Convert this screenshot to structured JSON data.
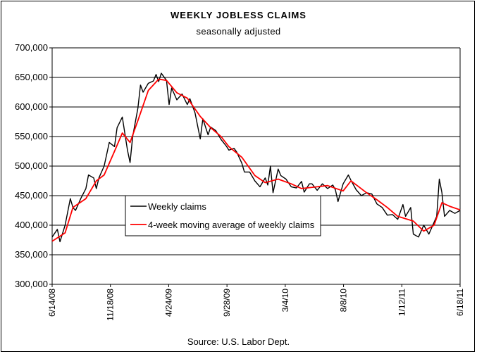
{
  "chart_data": {
    "type": "line",
    "title": "WEEKLY JOBLESS CLAIMS",
    "subtitle": "seasonally adjusted",
    "source": "Source: U.S. Labor Dept.",
    "xlabel": "",
    "ylabel": "",
    "ylim": [
      300000,
      700000
    ],
    "ytick_step": 50000,
    "y_tick_labels": [
      "300,000",
      "350,000",
      "400,000",
      "450,000",
      "500,000",
      "550,000",
      "600,000",
      "650,000",
      "700,000"
    ],
    "x_range": [
      "6/14/08",
      "6/18/11"
    ],
    "x_tick_labels": [
      "6/14/08",
      "11/18/08",
      "4/24/09",
      "9/28/09",
      "3/4/10",
      "8/8/10",
      "1/12/11",
      "6/18/11"
    ],
    "grid": "horizontal",
    "legend_position": "center-left",
    "series": [
      {
        "name": "Weekly claims",
        "color": "#000000",
        "points": [
          [
            "6/14/08",
            380000
          ],
          [
            "6/28/08",
            393000
          ],
          [
            "7/5/08",
            372000
          ],
          [
            "7/19/08",
            400000
          ],
          [
            "8/2/08",
            445000
          ],
          [
            "8/9/08",
            430000
          ],
          [
            "8/16/08",
            425000
          ],
          [
            "8/30/08",
            445000
          ],
          [
            "9/13/08",
            462000
          ],
          [
            "9/20/08",
            485000
          ],
          [
            "10/4/08",
            480000
          ],
          [
            "10/11/08",
            462000
          ],
          [
            "10/18/08",
            480000
          ],
          [
            "11/1/08",
            500000
          ],
          [
            "11/15/08",
            540000
          ],
          [
            "11/29/08",
            533000
          ],
          [
            "12/6/08",
            565000
          ],
          [
            "12/20/08",
            583000
          ],
          [
            "1/3/09",
            527000
          ],
          [
            "1/10/09",
            506000
          ],
          [
            "1/17/09",
            550000
          ],
          [
            "1/31/09",
            598000
          ],
          [
            "2/7/09",
            637000
          ],
          [
            "2/14/09",
            625000
          ],
          [
            "2/28/09",
            640000
          ],
          [
            "3/14/09",
            644000
          ],
          [
            "3/21/09",
            655000
          ],
          [
            "3/28/09",
            643000
          ],
          [
            "4/4/09",
            657000
          ],
          [
            "4/18/09",
            645000
          ],
          [
            "4/25/09",
            604000
          ],
          [
            "5/2/09",
            632000
          ],
          [
            "5/16/09",
            612000
          ],
          [
            "5/30/09",
            622000
          ],
          [
            "6/13/09",
            604000
          ],
          [
            "6/20/09",
            614000
          ],
          [
            "7/4/09",
            590000
          ],
          [
            "7/18/09",
            546000
          ],
          [
            "7/25/09",
            580000
          ],
          [
            "8/8/09",
            553000
          ],
          [
            "8/15/09",
            566000
          ],
          [
            "8/29/09",
            560000
          ],
          [
            "9/12/09",
            545000
          ],
          [
            "9/26/09",
            534000
          ],
          [
            "10/3/09",
            527000
          ],
          [
            "10/17/09",
            530000
          ],
          [
            "10/24/09",
            524000
          ],
          [
            "11/7/09",
            505000
          ],
          [
            "11/14/09",
            490000
          ],
          [
            "11/28/09",
            490000
          ],
          [
            "12/12/09",
            475000
          ],
          [
            "12/26/09",
            465000
          ],
          [
            "1/9/10",
            480000
          ],
          [
            "1/16/10",
            468000
          ],
          [
            "1/23/10",
            500000
          ],
          [
            "1/30/10",
            455000
          ],
          [
            "2/13/10",
            495000
          ],
          [
            "2/20/10",
            484000
          ],
          [
            "3/6/10",
            478000
          ],
          [
            "3/20/10",
            465000
          ],
          [
            "4/3/10",
            463000
          ],
          [
            "4/17/10",
            474000
          ],
          [
            "4/24/10",
            456000
          ],
          [
            "5/8/10",
            470000
          ],
          [
            "5/15/10",
            470000
          ],
          [
            "5/29/10",
            459000
          ],
          [
            "6/12/10",
            470000
          ],
          [
            "6/26/10",
            462000
          ],
          [
            "7/10/10",
            468000
          ],
          [
            "7/17/10",
            460000
          ],
          [
            "7/24/10",
            440000
          ],
          [
            "8/7/10",
            470000
          ],
          [
            "8/21/10",
            485000
          ],
          [
            "8/28/10",
            476000
          ],
          [
            "9/11/10",
            460000
          ],
          [
            "9/25/10",
            450000
          ],
          [
            "10/9/10",
            455000
          ],
          [
            "10/23/10",
            453000
          ],
          [
            "11/6/10",
            436000
          ],
          [
            "11/20/10",
            430000
          ],
          [
            "12/4/10",
            417000
          ],
          [
            "12/18/10",
            418000
          ],
          [
            "1/1/11",
            410000
          ],
          [
            "1/15/11",
            435000
          ],
          [
            "1/22/11",
            415000
          ],
          [
            "2/5/11",
            430000
          ],
          [
            "2/12/11",
            385000
          ],
          [
            "2/26/11",
            380000
          ],
          [
            "3/12/11",
            400000
          ],
          [
            "3/26/11",
            385000
          ],
          [
            "4/9/11",
            405000
          ],
          [
            "4/16/11",
            415000
          ],
          [
            "4/23/11",
            478000
          ],
          [
            "4/30/11",
            455000
          ],
          [
            "5/7/11",
            415000
          ],
          [
            "5/21/11",
            425000
          ],
          [
            "6/4/11",
            420000
          ],
          [
            "6/18/11",
            425000
          ]
        ]
      },
      {
        "name": "4-week moving average of weekly claims",
        "color": "#ff0000",
        "points": [
          [
            "6/14/08",
            373000
          ],
          [
            "7/19/08",
            387000
          ],
          [
            "8/9/08",
            430000
          ],
          [
            "9/13/08",
            445000
          ],
          [
            "10/11/08",
            475000
          ],
          [
            "11/1/08",
            485000
          ],
          [
            "11/29/08",
            525000
          ],
          [
            "12/20/08",
            556000
          ],
          [
            "1/10/09",
            540000
          ],
          [
            "1/31/09",
            577000
          ],
          [
            "2/28/09",
            628000
          ],
          [
            "3/28/09",
            647000
          ],
          [
            "4/18/09",
            645000
          ],
          [
            "5/16/09",
            624000
          ],
          [
            "6/13/09",
            615000
          ],
          [
            "7/18/09",
            584000
          ],
          [
            "8/15/09",
            565000
          ],
          [
            "9/12/09",
            550000
          ],
          [
            "10/3/09",
            533000
          ],
          [
            "11/7/09",
            515000
          ],
          [
            "12/12/09",
            484000
          ],
          [
            "1/9/10",
            472000
          ],
          [
            "2/13/10",
            478000
          ],
          [
            "3/20/10",
            470000
          ],
          [
            "4/17/10",
            462000
          ],
          [
            "5/29/10",
            465000
          ],
          [
            "6/26/10",
            467000
          ],
          [
            "8/7/10",
            458000
          ],
          [
            "8/28/10",
            475000
          ],
          [
            "10/9/10",
            455000
          ],
          [
            "11/6/10",
            443000
          ],
          [
            "12/4/10",
            430000
          ],
          [
            "1/1/11",
            415000
          ],
          [
            "2/12/11",
            407000
          ],
          [
            "3/12/11",
            390000
          ],
          [
            "4/9/11",
            400000
          ],
          [
            "4/30/11",
            438000
          ],
          [
            "5/21/11",
            432000
          ],
          [
            "6/18/11",
            426000
          ]
        ]
      }
    ]
  }
}
